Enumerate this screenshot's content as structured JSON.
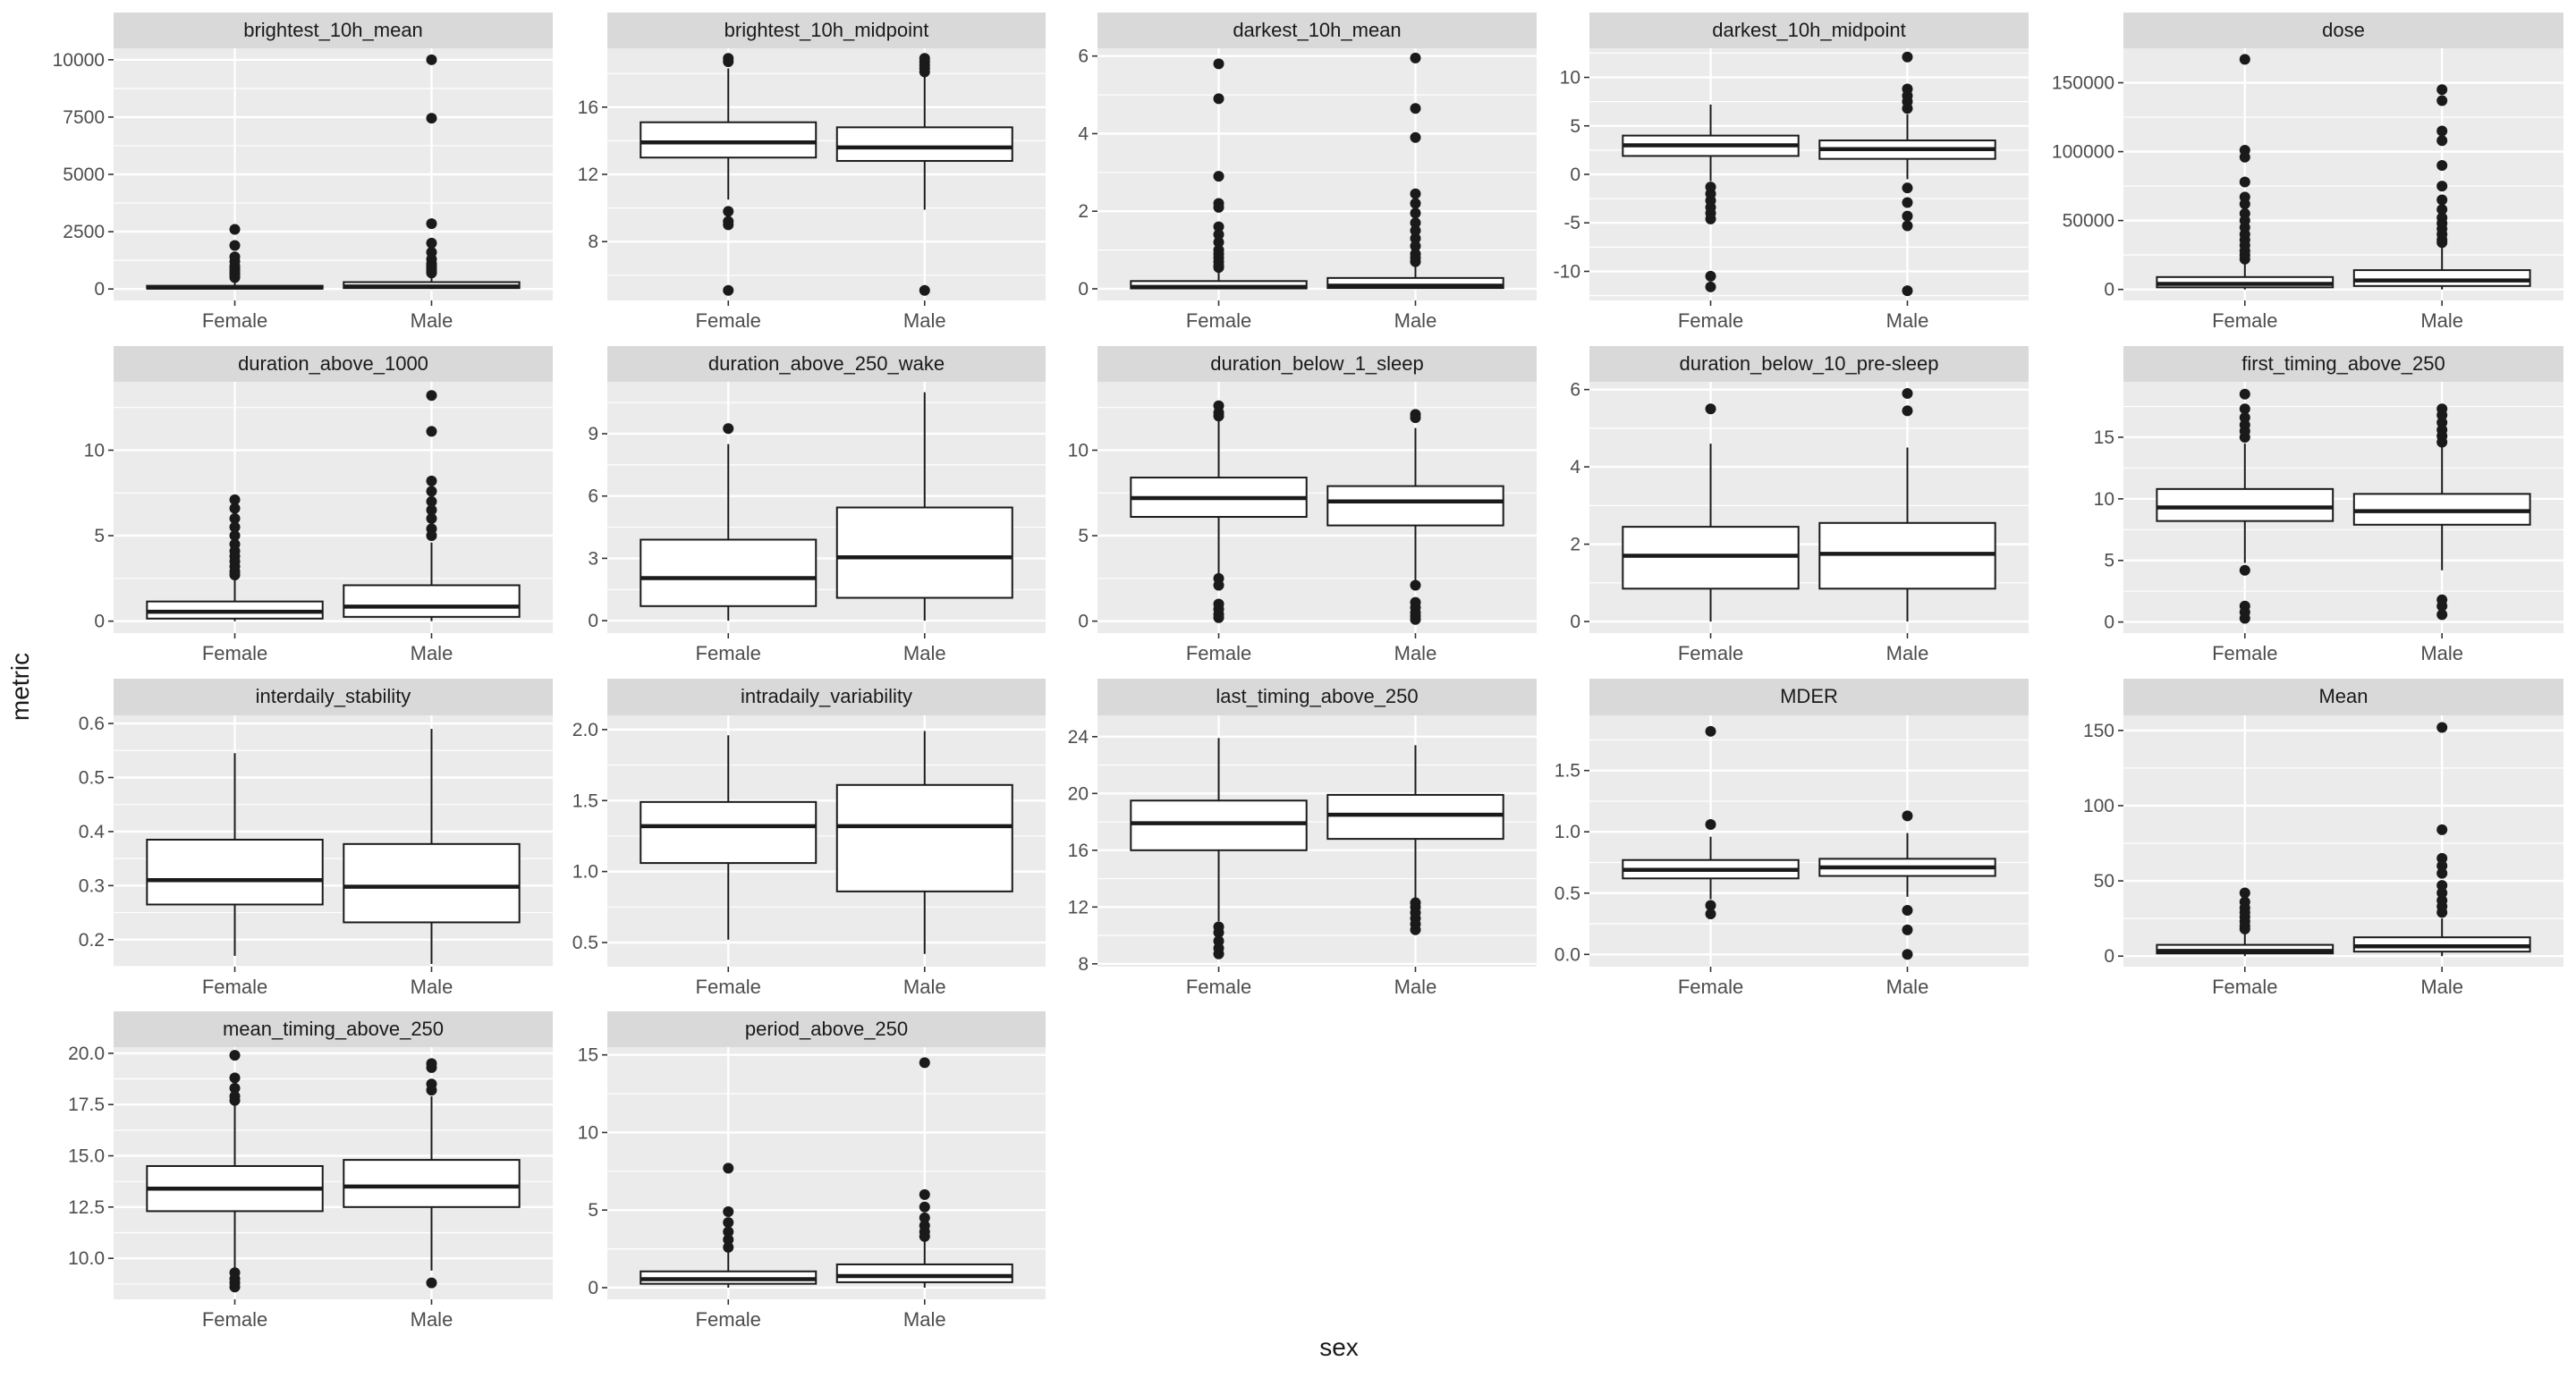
{
  "chart_data": {
    "type": "boxplot",
    "xlabel": "sex",
    "ylabel": "metric",
    "categories": [
      "Female",
      "Male"
    ],
    "colors": {
      "panel_bg": "#ebebeb",
      "strip_bg": "#d9d9d9",
      "grid": "#ffffff",
      "box_fill": "#ffffff",
      "ink": "#1a1a1a",
      "axis_text": "#4d4d4d"
    },
    "panels": [
      {
        "title": "brightest_10h_mean",
        "ylim": [
          -500,
          10500
        ],
        "yticks": [
          0,
          2500,
          5000,
          7500,
          10000
        ],
        "boxes": [
          {
            "category": "Female",
            "whisker_low": 0,
            "q1": 20,
            "median": 60,
            "q3": 140,
            "whisker_high": 300,
            "outliers": [
              2600,
              1900,
              1400,
              1200,
              1000,
              900,
              800,
              700,
              600,
              500
            ]
          },
          {
            "category": "Male",
            "whisker_low": 0,
            "q1": 40,
            "median": 110,
            "q3": 300,
            "whisker_high": 650,
            "outliers": [
              10000,
              7450,
              2850,
              2000,
              1600,
              1300,
              1100,
              1000,
              900,
              800,
              700
            ]
          }
        ]
      },
      {
        "title": "brightest_10h_midpoint",
        "ylim": [
          4.5,
          19.5
        ],
        "yticks": [
          8,
          12,
          16
        ],
        "boxes": [
          {
            "category": "Female",
            "whisker_low": 10.5,
            "q1": 13.0,
            "median": 13.9,
            "q3": 15.1,
            "whisker_high": 18.3,
            "outliers": [
              18.7,
              18.9,
              9.8,
              9.0,
              9.2,
              5.1
            ]
          },
          {
            "category": "Male",
            "whisker_low": 9.9,
            "q1": 12.8,
            "median": 13.6,
            "q3": 14.8,
            "whisker_high": 17.9,
            "outliers": [
              18.1,
              18.3,
              18.5,
              18.7,
              18.9,
              5.1
            ]
          }
        ]
      },
      {
        "title": "darkest_10h_mean",
        "ylim": [
          -0.3,
          6.2
        ],
        "yticks": [
          0,
          2,
          4,
          6
        ],
        "boxes": [
          {
            "category": "Female",
            "whisker_low": 0,
            "q1": 0.01,
            "median": 0.05,
            "q3": 0.2,
            "whisker_high": 0.45,
            "outliers": [
              5.8,
              4.9,
              2.9,
              2.2,
              2.1,
              1.6,
              1.4,
              1.2,
              1.0,
              0.9,
              0.8,
              0.7,
              0.6,
              0.55
            ]
          },
          {
            "category": "Male",
            "whisker_low": 0,
            "q1": 0.02,
            "median": 0.08,
            "q3": 0.28,
            "whisker_high": 0.6,
            "outliers": [
              5.95,
              4.65,
              3.9,
              2.45,
              2.2,
              1.95,
              1.7,
              1.5,
              1.3,
              1.1,
              0.9,
              0.8,
              0.7
            ]
          }
        ]
      },
      {
        "title": "darkest_10h_midpoint",
        "ylim": [
          -13,
          13
        ],
        "yticks": [
          -10,
          -5,
          0,
          5,
          10
        ],
        "boxes": [
          {
            "category": "Female",
            "whisker_low": -0.7,
            "q1": 1.9,
            "median": 3.0,
            "q3": 4.0,
            "whisker_high": 7.2,
            "outliers": [
              -1.3,
              -2.0,
              -2.7,
              -3.4,
              -4.0,
              -4.6,
              -10.5,
              -11.6
            ]
          },
          {
            "category": "Male",
            "whisker_low": -0.5,
            "q1": 1.6,
            "median": 2.6,
            "q3": 3.5,
            "whisker_high": 6.2,
            "outliers": [
              12.1,
              8.8,
              8.1,
              7.5,
              6.8,
              -1.4,
              -2.9,
              -4.3,
              -5.3,
              -12.0
            ]
          }
        ]
      },
      {
        "title": "dose",
        "ylim": [
          -8000,
          175000
        ],
        "yticks": [
          0,
          50000,
          100000,
          150000
        ],
        "boxes": [
          {
            "category": "Female",
            "whisker_low": 0,
            "q1": 1500,
            "median": 4000,
            "q3": 9000,
            "whisker_high": 20000,
            "outliers": [
              167000,
              101000,
              96000,
              78000,
              67000,
              62000,
              55000,
              50000,
              45000,
              40000,
              36000,
              32000,
              28000,
              25000,
              22000
            ]
          },
          {
            "category": "Male",
            "whisker_low": 0,
            "q1": 2500,
            "median": 6500,
            "q3": 14000,
            "whisker_high": 32000,
            "outliers": [
              145000,
              137000,
              115000,
              108000,
              90000,
              75000,
              65000,
              58000,
              52000,
              48000,
              44000,
              40000,
              36000,
              34000
            ]
          }
        ]
      },
      {
        "title": "duration_above_1000",
        "ylim": [
          -0.7,
          14
        ],
        "yticks": [
          0,
          5,
          10
        ],
        "boxes": [
          {
            "category": "Female",
            "whisker_low": 0,
            "q1": 0.15,
            "median": 0.55,
            "q3": 1.15,
            "whisker_high": 2.6,
            "outliers": [
              7.1,
              6.6,
              6.0,
              5.5,
              5.0,
              4.5,
              4.1,
              3.8,
              3.5,
              3.2,
              2.9,
              2.7
            ]
          },
          {
            "category": "Male",
            "whisker_low": 0,
            "q1": 0.25,
            "median": 0.85,
            "q3": 2.1,
            "whisker_high": 4.6,
            "outliers": [
              13.2,
              11.1,
              8.2,
              7.6,
              7.0,
              6.5,
              6.0,
              5.4,
              5.0
            ]
          }
        ]
      },
      {
        "title": "duration_above_250_wake",
        "ylim": [
          -0.6,
          11.5
        ],
        "yticks": [
          0,
          3,
          6,
          9
        ],
        "boxes": [
          {
            "category": "Female",
            "whisker_low": 0,
            "q1": 0.7,
            "median": 2.05,
            "q3": 3.9,
            "whisker_high": 8.5,
            "outliers": [
              9.25
            ]
          },
          {
            "category": "Male",
            "whisker_low": 0,
            "q1": 1.1,
            "median": 3.05,
            "q3": 5.45,
            "whisker_high": 11.0,
            "outliers": []
          }
        ]
      },
      {
        "title": "duration_below_1_sleep",
        "ylim": [
          -0.7,
          14
        ],
        "yticks": [
          0,
          5,
          10
        ],
        "boxes": [
          {
            "category": "Female",
            "whisker_low": 2.8,
            "q1": 6.1,
            "median": 7.2,
            "q3": 8.4,
            "whisker_high": 11.7,
            "outliers": [
              12.6,
              12.2,
              12.0,
              2.5,
              2.1,
              1.0,
              0.7,
              0.4,
              0.2
            ]
          },
          {
            "category": "Male",
            "whisker_low": 2.4,
            "q1": 5.6,
            "median": 7.0,
            "q3": 7.9,
            "whisker_high": 11.3,
            "outliers": [
              12.1,
              11.9,
              2.1,
              1.1,
              0.8,
              0.5,
              0.3,
              0.1
            ]
          }
        ]
      },
      {
        "title": "duration_below_10_pre-sleep",
        "ylim": [
          -0.3,
          6.2
        ],
        "yticks": [
          0,
          2,
          4,
          6
        ],
        "boxes": [
          {
            "category": "Female",
            "whisker_low": 0,
            "q1": 0.85,
            "median": 1.7,
            "q3": 2.45,
            "whisker_high": 4.6,
            "outliers": [
              5.5
            ]
          },
          {
            "category": "Male",
            "whisker_low": 0,
            "q1": 0.85,
            "median": 1.75,
            "q3": 2.55,
            "whisker_high": 4.5,
            "outliers": [
              5.9,
              5.45
            ]
          }
        ]
      },
      {
        "title": "first_timing_above_250",
        "ylim": [
          -0.9,
          19.5
        ],
        "yticks": [
          0,
          5,
          10,
          15
        ],
        "boxes": [
          {
            "category": "Female",
            "whisker_low": 4.8,
            "q1": 8.2,
            "median": 9.3,
            "q3": 10.8,
            "whisker_high": 14.5,
            "outliers": [
              18.5,
              17.3,
              16.6,
              16.0,
              15.5,
              15.0,
              4.2,
              1.3,
              0.8,
              0.3
            ]
          },
          {
            "category": "Male",
            "whisker_low": 4.2,
            "q1": 7.9,
            "median": 9.0,
            "q3": 10.4,
            "whisker_high": 14.2,
            "outliers": [
              17.3,
              16.8,
              16.2,
              15.6,
              15.1,
              14.6,
              1.8,
              1.3,
              0.6
            ]
          }
        ]
      },
      {
        "title": "interdaily_stability",
        "ylim": [
          0.15,
          0.615
        ],
        "yticks": [
          0.2,
          0.3,
          0.4,
          0.5,
          0.6
        ],
        "boxes": [
          {
            "category": "Female",
            "whisker_low": 0.17,
            "q1": 0.265,
            "median": 0.31,
            "q3": 0.385,
            "whisker_high": 0.545,
            "outliers": []
          },
          {
            "category": "Male",
            "whisker_low": 0.155,
            "q1": 0.232,
            "median": 0.298,
            "q3": 0.377,
            "whisker_high": 0.59,
            "outliers": []
          }
        ]
      },
      {
        "title": "intradaily_variability",
        "ylim": [
          0.33,
          2.1
        ],
        "yticks": [
          0.5,
          1.0,
          1.5,
          2.0
        ],
        "boxes": [
          {
            "category": "Female",
            "whisker_low": 0.52,
            "q1": 1.06,
            "median": 1.32,
            "q3": 1.49,
            "whisker_high": 1.96,
            "outliers": []
          },
          {
            "category": "Male",
            "whisker_low": 0.42,
            "q1": 0.86,
            "median": 1.32,
            "q3": 1.61,
            "whisker_high": 1.99,
            "outliers": []
          }
        ]
      },
      {
        "title": "last_timing_above_250",
        "ylim": [
          7.8,
          25.5
        ],
        "yticks": [
          8,
          12,
          16,
          20,
          24
        ],
        "boxes": [
          {
            "category": "Female",
            "whisker_low": 11.0,
            "q1": 16.0,
            "median": 17.9,
            "q3": 19.5,
            "whisker_high": 23.9,
            "outliers": [
              10.6,
              10.2,
              9.6,
              9.1,
              8.7
            ]
          },
          {
            "category": "Male",
            "whisker_low": 12.5,
            "q1": 16.8,
            "median": 18.5,
            "q3": 19.9,
            "whisker_high": 23.4,
            "outliers": [
              12.3,
              12.0,
              11.6,
              11.2,
              10.8,
              10.4
            ]
          }
        ]
      },
      {
        "title": "MDER",
        "ylim": [
          -0.1,
          1.95
        ],
        "yticks": [
          0.0,
          0.5,
          1.0,
          1.5
        ],
        "boxes": [
          {
            "category": "Female",
            "whisker_low": 0.45,
            "q1": 0.62,
            "median": 0.69,
            "q3": 0.77,
            "whisker_high": 0.96,
            "outliers": [
              1.82,
              1.06,
              0.4,
              0.33
            ]
          },
          {
            "category": "Male",
            "whisker_low": 0.47,
            "q1": 0.64,
            "median": 0.71,
            "q3": 0.78,
            "whisker_high": 0.99,
            "outliers": [
              1.13,
              0.36,
              0.2,
              0.0
            ]
          }
        ]
      },
      {
        "title": "Mean",
        "ylim": [
          -7,
          160
        ],
        "yticks": [
          0,
          50,
          100,
          150
        ],
        "boxes": [
          {
            "category": "Female",
            "whisker_low": 0,
            "q1": 1.8,
            "median": 3.5,
            "q3": 7.5,
            "whisker_high": 16,
            "outliers": [
              42,
              36,
              32,
              29,
              26,
              23,
              20,
              18
            ]
          },
          {
            "category": "Male",
            "whisker_low": 0,
            "q1": 3.0,
            "median": 6.5,
            "q3": 12.5,
            "whisker_high": 25,
            "outliers": [
              152,
              84,
              65,
              60,
              55,
              47,
              42,
              37,
              33,
              29
            ]
          }
        ]
      },
      {
        "title": "mean_timing_above_250",
        "ylim": [
          8.0,
          20.3
        ],
        "yticks": [
          10.0,
          12.5,
          15.0,
          17.5,
          20.0
        ],
        "boxes": [
          {
            "category": "Female",
            "whisker_low": 9.5,
            "q1": 12.3,
            "median": 13.4,
            "q3": 14.5,
            "whisker_high": 17.5,
            "outliers": [
              19.9,
              18.8,
              18.3,
              17.9,
              17.7,
              9.3,
              9.0,
              8.8,
              8.6
            ]
          },
          {
            "category": "Male",
            "whisker_low": 9.4,
            "q1": 12.5,
            "median": 13.5,
            "q3": 14.8,
            "whisker_high": 17.9,
            "outliers": [
              19.5,
              19.3,
              18.5,
              18.2,
              8.8
            ]
          }
        ]
      },
      {
        "title": "period_above_250",
        "ylim": [
          -0.75,
          15.5
        ],
        "yticks": [
          0,
          5,
          10,
          15
        ],
        "boxes": [
          {
            "category": "Female",
            "whisker_low": 0,
            "q1": 0.25,
            "median": 0.55,
            "q3": 1.05,
            "whisker_high": 2.3,
            "outliers": [
              7.7,
              4.9,
              4.2,
              3.6,
              3.1,
              2.6
            ]
          },
          {
            "category": "Male",
            "whisker_low": 0,
            "q1": 0.35,
            "median": 0.75,
            "q3": 1.5,
            "whisker_high": 3.0,
            "outliers": [
              14.5,
              6.0,
              5.2,
              4.5,
              4.0,
              3.6,
              3.3
            ]
          }
        ]
      }
    ]
  }
}
